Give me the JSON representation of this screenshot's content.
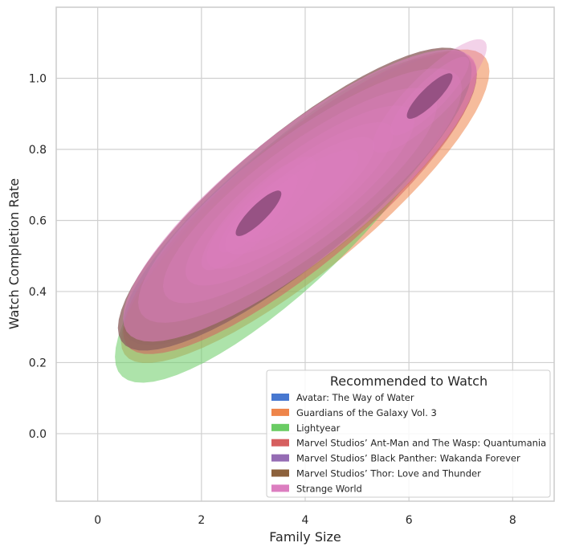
{
  "chart_data": {
    "type": "kde-contour",
    "xlabel": "Family Size",
    "ylabel": "Watch Completion Rate",
    "xlim": [
      -0.8,
      8.8
    ],
    "ylim": [
      -0.19,
      1.2
    ],
    "xticks": [
      0,
      2,
      4,
      6,
      8
    ],
    "yticks": [
      0.0,
      0.2,
      0.4,
      0.6,
      0.8,
      1.0
    ],
    "xtick_labels": [
      "0",
      "2",
      "4",
      "6",
      "8"
    ],
    "ytick_labels": [
      "0.0",
      "0.2",
      "0.4",
      "0.6",
      "0.8",
      "1.0"
    ],
    "grid": true,
    "legend": {
      "title": "Recommended to Watch",
      "placement": "lower-right",
      "entries": [
        {
          "name": "Avatar: The Way of Water",
          "color": "#4878d0"
        },
        {
          "name": "Guardians of the Galaxy Vol. 3",
          "color": "#ee854a"
        },
        {
          "name": "Lightyear",
          "color": "#6acc64"
        },
        {
          "name": "Marvel Studios’ Ant-Man and The Wasp: Quantumania",
          "color": "#d65f5f"
        },
        {
          "name": "Marvel Studios’ Black Panther: Wakanda Forever",
          "color": "#956cb4"
        },
        {
          "name": "Marvel Studios’ Thor: Love and Thunder",
          "color": "#8c613c"
        },
        {
          "name": "Strange World",
          "color": "#dc7ec0"
        }
      ]
    },
    "density_modes": [
      {
        "x": 3.1,
        "y": 0.62
      },
      {
        "x": 6.4,
        "y": 0.95
      }
    ],
    "series": [
      {
        "name": "Avatar: The Way of Water",
        "color": "#4878d0",
        "center": [
          3.9,
          0.66
        ],
        "spread_x": 2.4,
        "spread_y": 0.27,
        "corr": 0.85
      },
      {
        "name": "Guardians of the Galaxy Vol. 3",
        "color": "#ee854a",
        "center": [
          4.0,
          0.64
        ],
        "spread_x": 2.5,
        "spread_y": 0.29,
        "corr": 0.86
      },
      {
        "name": "Lightyear",
        "color": "#6acc64",
        "center": [
          3.6,
          0.6
        ],
        "spread_x": 2.3,
        "spread_y": 0.3,
        "corr": 0.84
      },
      {
        "name": "Marvel Studios’ Ant-Man and The Wasp: Quantumania",
        "color": "#d65f5f",
        "center": [
          3.9,
          0.65
        ],
        "spread_x": 2.4,
        "spread_y": 0.28,
        "corr": 0.85
      },
      {
        "name": "Marvel Studios’ Black Panther: Wakanda Forever",
        "color": "#956cb4",
        "center": [
          3.8,
          0.66
        ],
        "spread_x": 2.4,
        "spread_y": 0.28,
        "corr": 0.85
      },
      {
        "name": "Marvel Studios’ Thor: Love and Thunder",
        "color": "#8c613c",
        "center": [
          3.8,
          0.66
        ],
        "spread_x": 2.4,
        "spread_y": 0.28,
        "corr": 0.85
      },
      {
        "name": "Strange World",
        "color": "#dc7ec0",
        "center": [
          3.9,
          0.67
        ],
        "spread_x": 2.4,
        "spread_y": 0.27,
        "corr": 0.84
      }
    ]
  }
}
